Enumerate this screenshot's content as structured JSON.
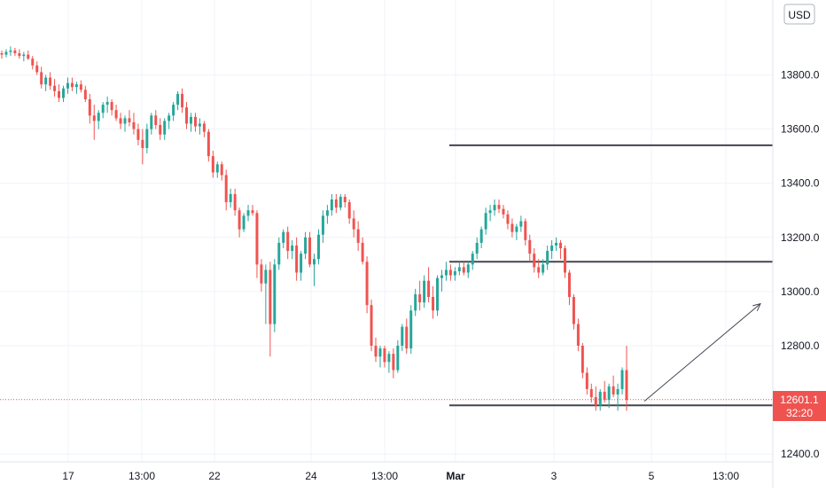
{
  "currency_button": "USD",
  "chart_data": {
    "type": "candlestick",
    "y_axis": {
      "ticks": [
        "13800.0",
        "13600.0",
        "13400.0",
        "13200.0",
        "13000.0",
        "12800.0",
        "12400.0"
      ],
      "tick_values": [
        13800,
        13600,
        13400,
        13200,
        13000,
        12800,
        12400
      ],
      "range": [
        12380,
        14060
      ]
    },
    "x_axis": {
      "ticks": [
        "17",
        "13:00",
        "22",
        "24",
        "13:00",
        "Mar",
        "3",
        "5",
        "13:00"
      ],
      "bold": [
        "Mar"
      ]
    },
    "price_label": {
      "value": "12601.1",
      "countdown": "32:20",
      "price": 12601.1
    },
    "horizontal_levels": [
      13540,
      13110,
      12580
    ],
    "arrow": {
      "from": [
        12595
      ],
      "to": [
        12955
      ]
    },
    "colors": {
      "up": "#26a69a",
      "down": "#ef5350",
      "level": "#434651",
      "grid": "#f0f3fa"
    },
    "candles": [
      [
        13880,
        13890,
        13860,
        13875
      ],
      [
        13875,
        13895,
        13865,
        13885
      ],
      [
        13885,
        13905,
        13870,
        13890
      ],
      [
        13890,
        13900,
        13870,
        13880
      ],
      [
        13880,
        13895,
        13860,
        13870
      ],
      [
        13870,
        13885,
        13850,
        13875
      ],
      [
        13875,
        13890,
        13855,
        13860
      ],
      [
        13860,
        13870,
        13820,
        13835
      ],
      [
        13835,
        13850,
        13800,
        13810
      ],
      [
        13810,
        13830,
        13750,
        13765
      ],
      [
        13765,
        13800,
        13740,
        13790
      ],
      [
        13790,
        13810,
        13745,
        13760
      ],
      [
        13760,
        13785,
        13720,
        13740
      ],
      [
        13740,
        13765,
        13700,
        13715
      ],
      [
        13715,
        13760,
        13700,
        13750
      ],
      [
        13750,
        13790,
        13730,
        13770
      ],
      [
        13770,
        13790,
        13740,
        13755
      ],
      [
        13755,
        13775,
        13730,
        13765
      ],
      [
        13765,
        13780,
        13735,
        13745
      ],
      [
        13745,
        13760,
        13700,
        13710
      ],
      [
        13710,
        13730,
        13620,
        13650
      ],
      [
        13650,
        13690,
        13560,
        13630
      ],
      [
        13630,
        13670,
        13600,
        13660
      ],
      [
        13660,
        13700,
        13640,
        13690
      ],
      [
        13690,
        13720,
        13660,
        13700
      ],
      [
        13700,
        13710,
        13650,
        13670
      ],
      [
        13670,
        13690,
        13630,
        13640
      ],
      [
        13640,
        13660,
        13600,
        13620
      ],
      [
        13620,
        13650,
        13590,
        13640
      ],
      [
        13640,
        13670,
        13610,
        13625
      ],
      [
        13625,
        13660,
        13580,
        13600
      ],
      [
        13600,
        13620,
        13540,
        13560
      ],
      [
        13560,
        13600,
        13470,
        13530
      ],
      [
        13530,
        13620,
        13510,
        13600
      ],
      [
        13600,
        13660,
        13580,
        13650
      ],
      [
        13650,
        13670,
        13600,
        13615
      ],
      [
        13615,
        13640,
        13560,
        13580
      ],
      [
        13580,
        13640,
        13560,
        13630
      ],
      [
        13630,
        13660,
        13600,
        13650
      ],
      [
        13650,
        13700,
        13630,
        13690
      ],
      [
        13690,
        13740,
        13670,
        13730
      ],
      [
        13730,
        13750,
        13660,
        13680
      ],
      [
        13680,
        13700,
        13600,
        13620
      ],
      [
        13620,
        13660,
        13590,
        13645
      ],
      [
        13645,
        13660,
        13590,
        13610
      ],
      [
        13610,
        13640,
        13580,
        13620
      ],
      [
        13620,
        13630,
        13570,
        13590
      ],
      [
        13590,
        13600,
        13480,
        13500
      ],
      [
        13500,
        13520,
        13420,
        13440
      ],
      [
        13440,
        13480,
        13420,
        13470
      ],
      [
        13470,
        13480,
        13410,
        13430
      ],
      [
        13430,
        13450,
        13300,
        13330
      ],
      [
        13330,
        13380,
        13310,
        13360
      ],
      [
        13360,
        13380,
        13280,
        13300
      ],
      [
        13300,
        13310,
        13200,
        13230
      ],
      [
        13230,
        13290,
        13220,
        13280
      ],
      [
        13280,
        13320,
        13260,
        13300
      ],
      [
        13300,
        13320,
        13280,
        13290
      ],
      [
        13290,
        13300,
        13050,
        13100
      ],
      [
        13100,
        13120,
        13000,
        13030
      ],
      [
        13030,
        13100,
        12880,
        13080
      ],
      [
        13080,
        13110,
        12760,
        12880
      ],
      [
        12880,
        13120,
        12850,
        13100
      ],
      [
        13100,
        13200,
        13080,
        13180
      ],
      [
        13180,
        13230,
        13160,
        13220
      ],
      [
        13220,
        13240,
        13120,
        13150
      ],
      [
        13150,
        13190,
        13120,
        13170
      ],
      [
        13170,
        13200,
        13040,
        13070
      ],
      [
        13070,
        13150,
        13040,
        13140
      ],
      [
        13140,
        13220,
        13120,
        13200
      ],
      [
        13200,
        13220,
        13090,
        13100
      ],
      [
        13100,
        13140,
        13020,
        13120
      ],
      [
        13120,
        13230,
        13100,
        13210
      ],
      [
        13210,
        13300,
        13180,
        13280
      ],
      [
        13280,
        13320,
        13250,
        13300
      ],
      [
        13300,
        13360,
        13280,
        13340
      ],
      [
        13340,
        13360,
        13290,
        13310
      ],
      [
        13310,
        13360,
        13300,
        13350
      ],
      [
        13350,
        13360,
        13310,
        13330
      ],
      [
        13330,
        13340,
        13250,
        13270
      ],
      [
        13270,
        13300,
        13200,
        13230
      ],
      [
        13230,
        13260,
        13150,
        13180
      ],
      [
        13180,
        13200,
        13100,
        13110
      ],
      [
        13110,
        13130,
        12920,
        12950
      ],
      [
        12950,
        12970,
        12780,
        12800
      ],
      [
        12800,
        12830,
        12740,
        12760
      ],
      [
        12760,
        12800,
        12720,
        12790
      ],
      [
        12790,
        12800,
        12720,
        12740
      ],
      [
        12740,
        12780,
        12700,
        12770
      ],
      [
        12770,
        12790,
        12680,
        12710
      ],
      [
        12710,
        12820,
        12700,
        12800
      ],
      [
        12800,
        12880,
        12780,
        12870
      ],
      [
        12870,
        12900,
        12770,
        12790
      ],
      [
        12790,
        12950,
        12770,
        12930
      ],
      [
        12930,
        13010,
        12910,
        12990
      ],
      [
        12990,
        13040,
        12930,
        12960
      ],
      [
        12960,
        13060,
        12940,
        13040
      ],
      [
        13040,
        13090,
        12960,
        12980
      ],
      [
        12980,
        13020,
        12900,
        12930
      ],
      [
        12930,
        13060,
        12910,
        13050
      ],
      [
        13050,
        13080,
        13000,
        13060
      ],
      [
        13060,
        13110,
        13040,
        13080
      ],
      [
        13080,
        13100,
        13040,
        13060
      ],
      [
        13060,
        13090,
        13040,
        13075
      ],
      [
        13075,
        13110,
        13060,
        13090
      ],
      [
        13090,
        13110,
        13060,
        13070
      ],
      [
        13070,
        13110,
        13050,
        13100
      ],
      [
        13100,
        13150,
        13080,
        13140
      ],
      [
        13140,
        13200,
        13120,
        13180
      ],
      [
        13180,
        13240,
        13160,
        13230
      ],
      [
        13230,
        13310,
        13210,
        13290
      ],
      [
        13290,
        13320,
        13260,
        13300
      ],
      [
        13300,
        13340,
        13280,
        13320
      ],
      [
        13320,
        13340,
        13290,
        13305
      ],
      [
        13305,
        13320,
        13270,
        13285
      ],
      [
        13285,
        13300,
        13230,
        13250
      ],
      [
        13250,
        13270,
        13200,
        13220
      ],
      [
        13220,
        13250,
        13190,
        13240
      ],
      [
        13240,
        13280,
        13220,
        13260
      ],
      [
        13260,
        13270,
        13170,
        13190
      ],
      [
        13190,
        13210,
        13110,
        13140
      ],
      [
        13140,
        13160,
        13070,
        13090
      ],
      [
        13090,
        13120,
        13050,
        13070
      ],
      [
        13070,
        13120,
        13060,
        13100
      ],
      [
        13100,
        13170,
        13080,
        13150
      ],
      [
        13150,
        13190,
        13120,
        13170
      ],
      [
        13170,
        13200,
        13150,
        13180
      ],
      [
        13180,
        13190,
        13120,
        13160
      ],
      [
        13160,
        13170,
        13050,
        13070
      ],
      [
        13070,
        13080,
        12950,
        12980
      ],
      [
        12980,
        12990,
        12860,
        12880
      ],
      [
        12880,
        12900,
        12780,
        12800
      ],
      [
        12800,
        12810,
        12680,
        12700
      ],
      [
        12700,
        12720,
        12620,
        12640
      ],
      [
        12640,
        12660,
        12590,
        12610
      ],
      [
        12610,
        12650,
        12560,
        12580
      ],
      [
        12580,
        12640,
        12560,
        12630
      ],
      [
        12630,
        12670,
        12590,
        12600
      ],
      [
        12600,
        12660,
        12570,
        12650
      ],
      [
        12650,
        12690,
        12610,
        12620
      ],
      [
        12620,
        12660,
        12560,
        12640
      ],
      [
        12640,
        12720,
        12620,
        12710
      ],
      [
        12710,
        12800,
        12560,
        12600
      ]
    ]
  }
}
